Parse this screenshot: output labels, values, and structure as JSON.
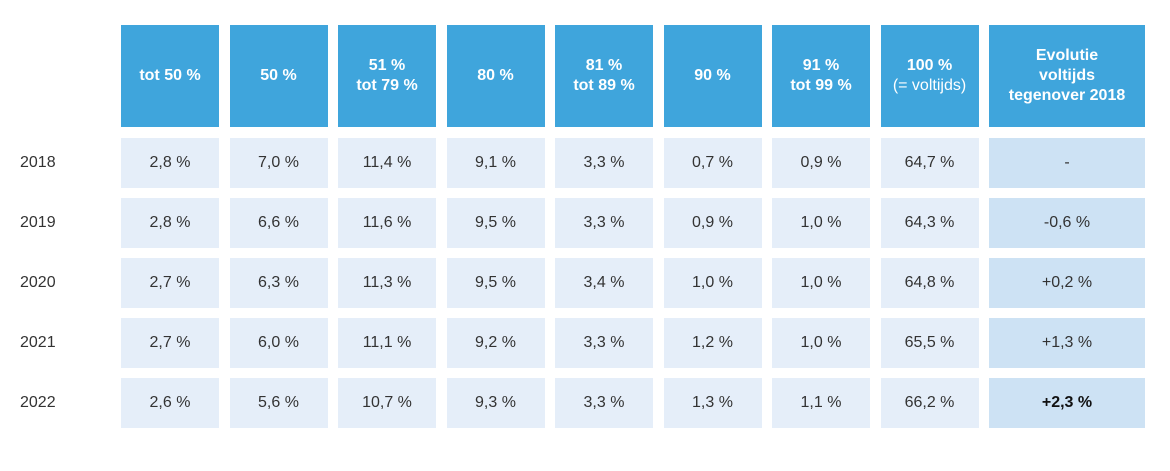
{
  "header": {
    "columns": [
      [
        "tot 50 %"
      ],
      [
        "50 %"
      ],
      [
        "51 %",
        "tot 79 %"
      ],
      [
        "80 %"
      ],
      [
        "81 %",
        "tot 89 %"
      ],
      [
        "90 %"
      ],
      [
        "91 %",
        "tot 99 %"
      ],
      [
        "100 %",
        "(= voltijds)"
      ],
      [
        "Evolutie",
        "voltijds",
        "tegenover 2018"
      ]
    ]
  },
  "table": {
    "rows": [
      {
        "year": "2018",
        "cells": [
          "2,8 %",
          "7,0 %",
          "11,4 %",
          "9,1 %",
          "3,3 %",
          "0,7 %",
          "0,9 %",
          "64,7 %",
          "-"
        ]
      },
      {
        "year": "2019",
        "cells": [
          "2,8 %",
          "6,6 %",
          "11,6 %",
          "9,5 %",
          "3,3 %",
          "0,9 %",
          "1,0 %",
          "64,3 %",
          "-0,6 %"
        ]
      },
      {
        "year": "2020",
        "cells": [
          "2,7 %",
          "6,3 %",
          "11,3 %",
          "9,5 %",
          "3,4 %",
          "1,0 %",
          "1,0 %",
          "64,8 %",
          "+0,2 %"
        ]
      },
      {
        "year": "2021",
        "cells": [
          "2,7 %",
          "6,0 %",
          "11,1 %",
          "9,2 %",
          "3,3 %",
          "1,2 %",
          "1,0 %",
          "65,5 %",
          "+1,3 %"
        ]
      },
      {
        "year": "2022",
        "cells": [
          "2,6 %",
          "5,6 %",
          "10,7 %",
          "9,3 %",
          "3,3 %",
          "1,3 %",
          "1,1 %",
          "66,2 %",
          "+2,3 %"
        ]
      }
    ]
  }
}
